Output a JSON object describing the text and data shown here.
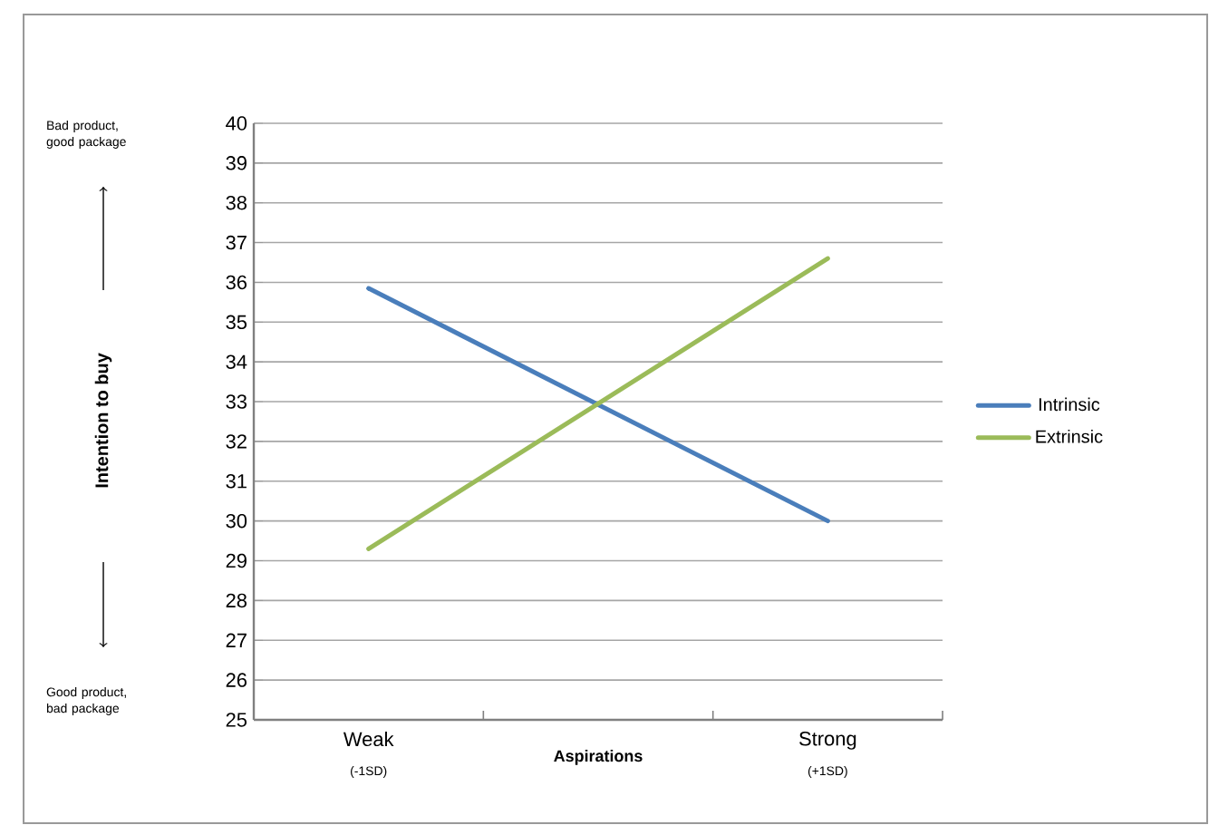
{
  "chart_data": {
    "type": "line",
    "categories": [
      "Weak",
      "Strong"
    ],
    "xlabel": "Aspirations",
    "ylim": [
      25,
      40
    ],
    "yticks": [
      25,
      26,
      27,
      28,
      29,
      30,
      31,
      32,
      33,
      34,
      35,
      36,
      37,
      38,
      39,
      40
    ],
    "grid": "y",
    "legend": "right",
    "marker": "none",
    "line_style": "solid",
    "series": [
      {
        "name": "Intrinsic",
        "color": "#4a7ebb",
        "values": [
          35.85,
          30.0
        ]
      },
      {
        "name": "Extrinsic",
        "color": "#9bbb59",
        "values": [
          29.3,
          36.6
        ]
      }
    ],
    "annotations": [
      "(-1SD)",
      "(+1SD)",
      "Bad product, good package",
      "Good product, bad package",
      "Intention to buy"
    ]
  }
}
